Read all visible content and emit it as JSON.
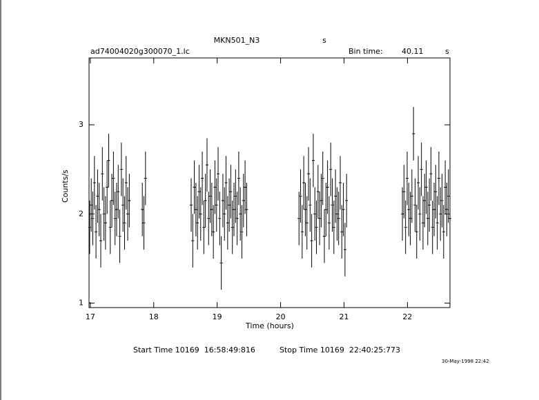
{
  "chart_data": {
    "type": "errorbar",
    "title": "MKN501_N3",
    "title_unit": "s",
    "subtitle": "ad74004020g300070_1.lc",
    "bin_time_label": "Bin time:",
    "bin_time": "40.11",
    "bin_time_unit": "s",
    "ylabel": "Counts/s",
    "xlabel": "Time (hours)",
    "start_time": "Start Time 10169  16:58:49:816",
    "stop_time": "Stop Time 10169  22:40:25:773",
    "date": "30-May-1998 22:42",
    "xlim": [
      16.98,
      22.67
    ],
    "ylim": [
      0.95,
      3.75
    ],
    "xticks": [
      17,
      18,
      19,
      20,
      21,
      22
    ],
    "yticks": [
      1,
      2,
      3
    ],
    "color": "#000000",
    "yerr": 0.3,
    "x": [
      16.99,
      17.015,
      17.04,
      17.065,
      17.09,
      17.115,
      17.14,
      17.165,
      17.19,
      17.215,
      17.24,
      17.265,
      17.29,
      17.315,
      17.34,
      17.365,
      17.39,
      17.415,
      17.44,
      17.465,
      17.49,
      17.515,
      17.54,
      17.565,
      17.59,
      17.615,
      17.82,
      17.845,
      17.87,
      18.59,
      18.615,
      18.64,
      18.665,
      18.69,
      18.715,
      18.74,
      18.765,
      18.79,
      18.815,
      18.84,
      18.865,
      18.89,
      18.915,
      18.94,
      18.965,
      18.99,
      19.015,
      19.04,
      19.065,
      19.09,
      19.115,
      19.14,
      19.165,
      19.19,
      19.215,
      19.24,
      19.265,
      19.29,
      19.315,
      19.34,
      19.365,
      19.39,
      19.415,
      19.44,
      19.465,
      20.29,
      20.315,
      20.34,
      20.365,
      20.39,
      20.415,
      20.44,
      20.465,
      20.49,
      20.515,
      20.54,
      20.565,
      20.59,
      20.615,
      20.64,
      20.665,
      20.69,
      20.715,
      20.74,
      20.765,
      20.79,
      20.815,
      20.84,
      20.865,
      20.89,
      20.915,
      20.94,
      20.965,
      20.99,
      21.015,
      21.04,
      21.92,
      21.945,
      21.97,
      21.995,
      22.02,
      22.045,
      22.07,
      22.095,
      22.12,
      22.145,
      22.17,
      22.195,
      22.22,
      22.245,
      22.27,
      22.295,
      22.32,
      22.345,
      22.37,
      22.395,
      22.42,
      22.445,
      22.47,
      22.495,
      22.52,
      22.545,
      22.57,
      22.595,
      22.62,
      22.645,
      22.67
    ],
    "values": [
      1.85,
      2.1,
      1.95,
      2.35,
      1.8,
      2.2,
      2.05,
      1.7,
      2.45,
      2.0,
      1.9,
      2.3,
      2.6,
      1.85,
      2.15,
      2.4,
      1.95,
      2.05,
      2.25,
      1.75,
      2.5,
      2.1,
      1.9,
      2.35,
      2.0,
      2.15,
      2.05,
      1.9,
      2.4,
      2.1,
      1.7,
      2.3,
      2.05,
      1.9,
      2.25,
      2.0,
      2.4,
      1.85,
      2.15,
      2.55,
      1.95,
      2.2,
      2.05,
      1.8,
      2.3,
      2.1,
      2.45,
      1.95,
      1.45,
      2.15,
      2.0,
      2.35,
      1.9,
      2.1,
      2.25,
      1.85,
      2.05,
      2.2,
      1.95,
      2.4,
      2.0,
      1.8,
      2.15,
      2.3,
      2.05,
      1.95,
      2.2,
      1.8,
      2.35,
      2.05,
      1.9,
      2.45,
      2.1,
      1.7,
      2.6,
      2.0,
      1.85,
      2.25,
      1.95,
      2.15,
      2.4,
      1.75,
      2.05,
      2.3,
      1.9,
      2.5,
      2.1,
      1.85,
      2.2,
      2.0,
      1.95,
      2.35,
      1.8,
      2.05,
      1.6,
      2.15,
      2.0,
      2.25,
      1.85,
      2.4,
      2.05,
      1.95,
      2.2,
      2.9,
      2.1,
      1.8,
      2.35,
      2.0,
      2.5,
      1.9,
      2.15,
      2.3,
      1.95,
      2.1,
      2.45,
      1.85,
      2.05,
      2.25,
      1.9,
      2.4,
      2.0,
      2.15,
      1.8,
      2.3,
      2.05,
      2.2,
      1.95
    ]
  }
}
